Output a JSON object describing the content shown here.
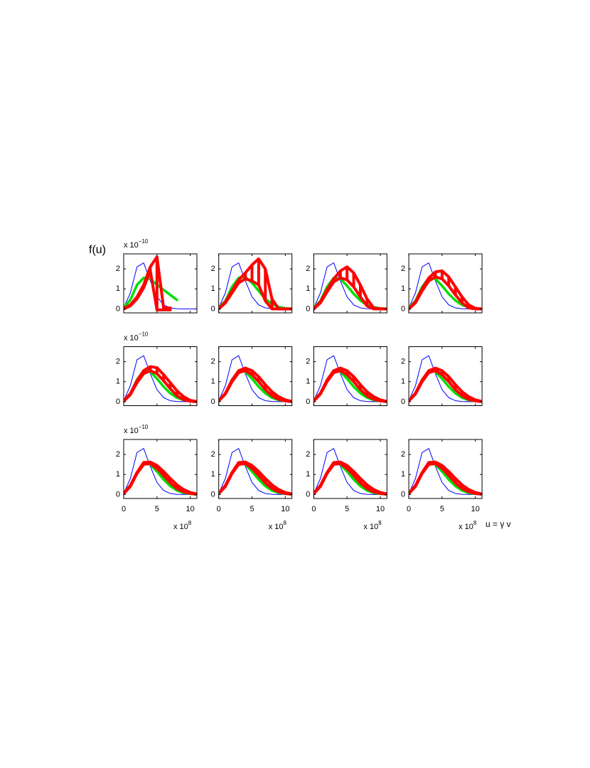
{
  "figure": {
    "ylabel": "f(u)",
    "xlabel": "u = γ v"
  },
  "chart_data": [
    {
      "type": "line",
      "x": [
        0,
        1,
        2,
        3,
        4,
        5,
        6,
        7,
        8,
        9,
        10,
        10.8
      ],
      "xlim": [
        0,
        11
      ],
      "ylim": [
        -0.2,
        2.75
      ],
      "xticks": [
        0,
        5,
        10
      ],
      "yticks": [
        0,
        1,
        2
      ],
      "xtick_labels": false,
      "y_multiplier": {
        "base": "x 10",
        "exponent": "−10"
      },
      "series": [
        {
          "color": "#0000ff",
          "values": [
            0.05,
            0.8,
            2.1,
            2.3,
            1.4,
            0.6,
            0.2,
            0.05,
            0.01,
            0,
            0,
            0
          ]
        },
        {
          "color": "#00dd00",
          "values": [
            0.05,
            0.45,
            1.2,
            1.55,
            1.5,
            1.2,
            0.95,
            0.7,
            0.45,
            null,
            null,
            null
          ]
        }
      ],
      "band": {
        "color": "#ff0000",
        "low": [
          0,
          0.15,
          0.5,
          1.05,
          1.9,
          -0.05,
          -0.05,
          -0.05,
          null,
          null,
          null,
          null
        ],
        "high": [
          0,
          0.2,
          0.6,
          1.2,
          2.1,
          2.6,
          0.05,
          0.05,
          null,
          null,
          null,
          null
        ]
      }
    },
    {
      "type": "line",
      "x": [
        0,
        1,
        2,
        3,
        4,
        5,
        6,
        7,
        8,
        9,
        10,
        10.8
      ],
      "xlim": [
        0,
        11
      ],
      "ylim": [
        -0.2,
        2.75
      ],
      "xticks": [
        0,
        5,
        10
      ],
      "yticks": [
        0,
        1,
        2
      ],
      "xtick_labels": false,
      "series": [
        {
          "color": "#0000ff",
          "values": [
            0.05,
            0.8,
            2.1,
            2.3,
            1.4,
            0.6,
            0.2,
            0.05,
            0.01,
            0,
            0,
            0
          ]
        },
        {
          "color": "#00dd00",
          "values": [
            0.05,
            0.4,
            1.1,
            1.55,
            1.6,
            1.3,
            0.9,
            0.5,
            0.25,
            0.1,
            0.03,
            0.01
          ]
        }
      ],
      "band": {
        "color": "#ff0000",
        "low": [
          0,
          0.3,
          0.8,
          1.3,
          1.5,
          1.4,
          1.2,
          0.4,
          0,
          0,
          0,
          0
        ],
        "high": [
          0,
          0.35,
          0.9,
          1.45,
          1.8,
          2.2,
          2.5,
          2.0,
          0.5,
          0,
          0,
          0
        ]
      }
    },
    {
      "type": "line",
      "x": [
        0,
        1,
        2,
        3,
        4,
        5,
        6,
        7,
        8,
        9,
        10,
        10.8
      ],
      "xlim": [
        0,
        11
      ],
      "ylim": [
        -0.2,
        2.75
      ],
      "xticks": [
        0,
        5,
        10
      ],
      "yticks": [
        0,
        1,
        2
      ],
      "xtick_labels": false,
      "series": [
        {
          "color": "#0000ff",
          "values": [
            0.05,
            0.8,
            2.1,
            2.3,
            1.4,
            0.6,
            0.2,
            0.05,
            0.01,
            0,
            0,
            0
          ]
        },
        {
          "color": "#00dd00",
          "values": [
            0.05,
            0.4,
            1.1,
            1.55,
            1.5,
            1.15,
            0.75,
            0.42,
            0.2,
            0.08,
            0.03,
            0.01
          ]
        }
      ],
      "band": {
        "color": "#ff0000",
        "low": [
          0,
          0.3,
          0.85,
          1.35,
          1.55,
          1.45,
          1.1,
          0.6,
          0.15,
          0,
          0,
          0
        ],
        "high": [
          0,
          0.35,
          0.95,
          1.5,
          1.9,
          2.1,
          1.8,
          1.2,
          0.5,
          0.05,
          0,
          0
        ]
      }
    },
    {
      "type": "line",
      "x": [
        0,
        1,
        2,
        3,
        4,
        5,
        6,
        7,
        8,
        9,
        10,
        10.8
      ],
      "xlim": [
        0,
        11
      ],
      "ylim": [
        -0.2,
        2.75
      ],
      "xticks": [
        0,
        5,
        10
      ],
      "yticks": [
        0,
        1,
        2
      ],
      "xtick_labels": false,
      "series": [
        {
          "color": "#0000ff",
          "values": [
            0.05,
            0.8,
            2.1,
            2.3,
            1.4,
            0.6,
            0.2,
            0.05,
            0.01,
            0,
            0,
            0
          ]
        },
        {
          "color": "#00dd00",
          "values": [
            0.05,
            0.4,
            1.1,
            1.55,
            1.5,
            1.15,
            0.75,
            0.42,
            0.2,
            0.08,
            0.03,
            0.01
          ]
        }
      ],
      "band": {
        "color": "#ff0000",
        "low": [
          0,
          0.3,
          0.9,
          1.4,
          1.6,
          1.5,
          1.15,
          0.7,
          0.3,
          0.05,
          0,
          0
        ],
        "high": [
          0,
          0.35,
          1.0,
          1.55,
          1.85,
          1.9,
          1.6,
          1.1,
          0.6,
          0.2,
          0.03,
          0
        ]
      }
    },
    {
      "type": "line",
      "x": [
        0,
        1,
        2,
        3,
        4,
        5,
        6,
        7,
        8,
        9,
        10,
        10.8
      ],
      "xlim": [
        0,
        11
      ],
      "ylim": [
        -0.2,
        2.75
      ],
      "xticks": [
        0,
        5,
        10
      ],
      "yticks": [
        0,
        1,
        2
      ],
      "xtick_labels": false,
      "y_multiplier": {
        "base": "x 10",
        "exponent": "−10"
      },
      "series": [
        {
          "color": "#0000ff",
          "values": [
            0.05,
            0.8,
            2.1,
            2.3,
            1.4,
            0.6,
            0.2,
            0.05,
            0.01,
            0,
            0,
            0
          ]
        },
        {
          "color": "#00dd00",
          "values": [
            0.05,
            0.4,
            1.1,
            1.55,
            1.5,
            1.15,
            0.75,
            0.42,
            0.2,
            0.08,
            0.03,
            0.01
          ]
        }
      ],
      "band": {
        "color": "#ff0000",
        "low": [
          0.02,
          0.35,
          0.95,
          1.4,
          1.55,
          1.4,
          1.05,
          0.65,
          0.3,
          0.1,
          0.02,
          0
        ],
        "high": [
          0.05,
          0.4,
          1.05,
          1.55,
          1.75,
          1.7,
          1.35,
          0.95,
          0.55,
          0.25,
          0.07,
          0.02
        ]
      }
    },
    {
      "type": "line",
      "x": [
        0,
        1,
        2,
        3,
        4,
        5,
        6,
        7,
        8,
        9,
        10,
        10.8
      ],
      "xlim": [
        0,
        11
      ],
      "ylim": [
        -0.2,
        2.75
      ],
      "xticks": [
        0,
        5,
        10
      ],
      "yticks": [
        0,
        1,
        2
      ],
      "xtick_labels": false,
      "series": [
        {
          "color": "#0000ff",
          "values": [
            0.05,
            0.8,
            2.1,
            2.3,
            1.4,
            0.6,
            0.2,
            0.05,
            0.01,
            0,
            0,
            0
          ]
        },
        {
          "color": "#00dd00",
          "values": [
            0.05,
            0.4,
            1.1,
            1.55,
            1.5,
            1.15,
            0.75,
            0.42,
            0.2,
            0.08,
            0.03,
            0.01
          ]
        }
      ],
      "band": {
        "color": "#ff0000",
        "low": [
          0.03,
          0.38,
          1.0,
          1.45,
          1.55,
          1.35,
          1.0,
          0.6,
          0.3,
          0.12,
          0.04,
          0.01
        ],
        "high": [
          0.05,
          0.42,
          1.08,
          1.55,
          1.68,
          1.55,
          1.25,
          0.85,
          0.5,
          0.25,
          0.09,
          0.03
        ]
      }
    },
    {
      "type": "line",
      "x": [
        0,
        1,
        2,
        3,
        4,
        5,
        6,
        7,
        8,
        9,
        10,
        10.8
      ],
      "xlim": [
        0,
        11
      ],
      "ylim": [
        -0.2,
        2.75
      ],
      "xticks": [
        0,
        5,
        10
      ],
      "yticks": [
        0,
        1,
        2
      ],
      "xtick_labels": false,
      "series": [
        {
          "color": "#0000ff",
          "values": [
            0.05,
            0.8,
            2.1,
            2.3,
            1.4,
            0.6,
            0.2,
            0.05,
            0.01,
            0,
            0,
            0
          ]
        },
        {
          "color": "#00dd00",
          "values": [
            0.05,
            0.4,
            1.1,
            1.55,
            1.5,
            1.15,
            0.75,
            0.42,
            0.2,
            0.08,
            0.03,
            0.01
          ]
        }
      ],
      "band": {
        "color": "#ff0000",
        "low": [
          0.03,
          0.38,
          1.0,
          1.45,
          1.55,
          1.35,
          1.0,
          0.6,
          0.3,
          0.12,
          0.04,
          0.01
        ],
        "high": [
          0.05,
          0.42,
          1.08,
          1.55,
          1.68,
          1.55,
          1.25,
          0.85,
          0.5,
          0.25,
          0.09,
          0.03
        ]
      }
    },
    {
      "type": "line",
      "x": [
        0,
        1,
        2,
        3,
        4,
        5,
        6,
        7,
        8,
        9,
        10,
        10.8
      ],
      "xlim": [
        0,
        11
      ],
      "ylim": [
        -0.2,
        2.75
      ],
      "xticks": [
        0,
        5,
        10
      ],
      "yticks": [
        0,
        1,
        2
      ],
      "xtick_labels": false,
      "series": [
        {
          "color": "#0000ff",
          "values": [
            0.05,
            0.8,
            2.1,
            2.3,
            1.4,
            0.6,
            0.2,
            0.05,
            0.01,
            0,
            0,
            0
          ]
        },
        {
          "color": "#00dd00",
          "values": [
            0.05,
            0.4,
            1.1,
            1.55,
            1.5,
            1.15,
            0.75,
            0.42,
            0.2,
            0.08,
            0.03,
            0.01
          ]
        }
      ],
      "band": {
        "color": "#ff0000",
        "low": [
          0.03,
          0.38,
          1.0,
          1.45,
          1.55,
          1.35,
          1.0,
          0.6,
          0.3,
          0.12,
          0.04,
          0.01
        ],
        "high": [
          0.05,
          0.42,
          1.08,
          1.55,
          1.68,
          1.55,
          1.25,
          0.85,
          0.5,
          0.25,
          0.09,
          0.03
        ]
      }
    },
    {
      "type": "line",
      "x": [
        0,
        1,
        2,
        3,
        4,
        5,
        6,
        7,
        8,
        9,
        10,
        10.8
      ],
      "xlim": [
        0,
        11
      ],
      "ylim": [
        -0.2,
        2.75
      ],
      "xticks": [
        0,
        5,
        10
      ],
      "yticks": [
        0,
        1,
        2
      ],
      "xtick_labels": true,
      "y_multiplier": {
        "base": "x 10",
        "exponent": "−10"
      },
      "x_multiplier": {
        "base": "x 10",
        "exponent": "8"
      },
      "series": [
        {
          "color": "#0000ff",
          "values": [
            0.05,
            0.8,
            2.1,
            2.3,
            1.4,
            0.6,
            0.2,
            0.05,
            0.01,
            0,
            0,
            0
          ]
        },
        {
          "color": "#00dd00",
          "values": [
            0.05,
            0.4,
            1.1,
            1.55,
            1.5,
            1.15,
            0.75,
            0.42,
            0.2,
            0.08,
            0.03,
            0.01
          ]
        }
      ],
      "band": {
        "color": "#ff0000",
        "low": [
          0.04,
          0.4,
          1.05,
          1.5,
          1.55,
          1.3,
          0.95,
          0.58,
          0.3,
          0.13,
          0.05,
          0.02
        ],
        "high": [
          0.06,
          0.45,
          1.1,
          1.6,
          1.62,
          1.45,
          1.15,
          0.8,
          0.48,
          0.25,
          0.1,
          0.04
        ]
      }
    },
    {
      "type": "line",
      "x": [
        0,
        1,
        2,
        3,
        4,
        5,
        6,
        7,
        8,
        9,
        10,
        10.8
      ],
      "xlim": [
        0,
        11
      ],
      "ylim": [
        -0.2,
        2.75
      ],
      "xticks": [
        0,
        5,
        10
      ],
      "yticks": [
        0,
        1,
        2
      ],
      "xtick_labels": true,
      "x_multiplier": {
        "base": "x 10",
        "exponent": "8"
      },
      "series": [
        {
          "color": "#0000ff",
          "values": [
            0.05,
            0.8,
            2.1,
            2.3,
            1.4,
            0.6,
            0.2,
            0.05,
            0.01,
            0,
            0,
            0
          ]
        },
        {
          "color": "#00dd00",
          "values": [
            0.05,
            0.4,
            1.1,
            1.55,
            1.5,
            1.15,
            0.75,
            0.42,
            0.2,
            0.08,
            0.03,
            0.01
          ]
        }
      ],
      "band": {
        "color": "#ff0000",
        "low": [
          0.04,
          0.4,
          1.05,
          1.5,
          1.55,
          1.3,
          0.95,
          0.58,
          0.3,
          0.13,
          0.05,
          0.02
        ],
        "high": [
          0.06,
          0.45,
          1.1,
          1.6,
          1.62,
          1.45,
          1.15,
          0.8,
          0.48,
          0.25,
          0.1,
          0.04
        ]
      }
    },
    {
      "type": "line",
      "x": [
        0,
        1,
        2,
        3,
        4,
        5,
        6,
        7,
        8,
        9,
        10,
        10.8
      ],
      "xlim": [
        0,
        11
      ],
      "ylim": [
        -0.2,
        2.75
      ],
      "xticks": [
        0,
        5,
        10
      ],
      "yticks": [
        0,
        1,
        2
      ],
      "xtick_labels": true,
      "x_multiplier": {
        "base": "x 10",
        "exponent": "8"
      },
      "series": [
        {
          "color": "#0000ff",
          "values": [
            0.05,
            0.8,
            2.1,
            2.3,
            1.4,
            0.6,
            0.2,
            0.05,
            0.01,
            0,
            0,
            0
          ]
        },
        {
          "color": "#00dd00",
          "values": [
            0.05,
            0.4,
            1.1,
            1.55,
            1.5,
            1.15,
            0.75,
            0.42,
            0.2,
            0.08,
            0.03,
            0.01
          ]
        }
      ],
      "band": {
        "color": "#ff0000",
        "low": [
          0.04,
          0.4,
          1.05,
          1.5,
          1.55,
          1.3,
          0.95,
          0.58,
          0.3,
          0.13,
          0.05,
          0.02
        ],
        "high": [
          0.06,
          0.45,
          1.1,
          1.6,
          1.62,
          1.45,
          1.15,
          0.8,
          0.48,
          0.25,
          0.1,
          0.04
        ]
      }
    },
    {
      "type": "line",
      "x": [
        0,
        1,
        2,
        3,
        4,
        5,
        6,
        7,
        8,
        9,
        10,
        10.8
      ],
      "xlim": [
        0,
        11
      ],
      "ylim": [
        -0.2,
        2.75
      ],
      "xticks": [
        0,
        5,
        10
      ],
      "yticks": [
        0,
        1,
        2
      ],
      "xtick_labels": true,
      "x_multiplier": {
        "base": "x 10",
        "exponent": "8"
      },
      "series": [
        {
          "color": "#0000ff",
          "values": [
            0.05,
            0.8,
            2.1,
            2.3,
            1.4,
            0.6,
            0.2,
            0.05,
            0.01,
            0,
            0,
            0
          ]
        },
        {
          "color": "#00dd00",
          "values": [
            0.05,
            0.4,
            1.1,
            1.55,
            1.5,
            1.15,
            0.75,
            0.42,
            0.2,
            0.08,
            0.03,
            0.01
          ]
        }
      ],
      "band": {
        "color": "#ff0000",
        "low": [
          0.04,
          0.4,
          1.05,
          1.5,
          1.55,
          1.3,
          0.95,
          0.58,
          0.3,
          0.13,
          0.05,
          0.02
        ],
        "high": [
          0.06,
          0.45,
          1.1,
          1.6,
          1.62,
          1.45,
          1.15,
          0.8,
          0.48,
          0.25,
          0.1,
          0.04
        ]
      }
    }
  ]
}
